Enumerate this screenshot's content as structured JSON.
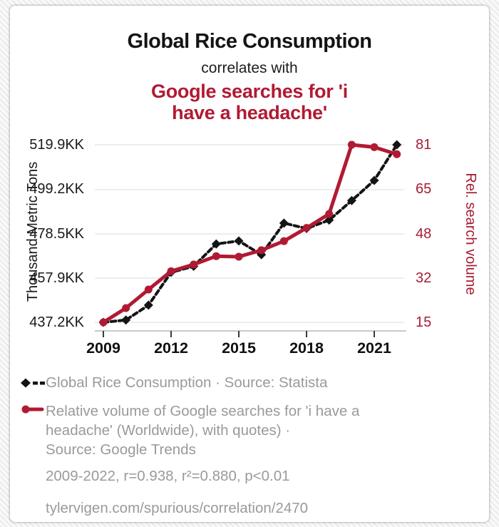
{
  "header": {
    "title": "Global Rice Consumption",
    "connector": "correlates with",
    "correlated_term_line1": "Google searches for 'i",
    "correlated_term_line2": "have a headache'"
  },
  "chart_data": {
    "type": "line",
    "x": [
      2009,
      2010,
      2011,
      2012,
      2013,
      2014,
      2015,
      2016,
      2017,
      2018,
      2019,
      2020,
      2021,
      2022
    ],
    "x_tick_labels": [
      "2009",
      "2012",
      "2015",
      "2018",
      "2021"
    ],
    "grid": true,
    "legend_position": "below",
    "left_axis": {
      "label": "Thousand Metric Tons",
      "min": 437.2,
      "max": 519.9,
      "tick_labels": [
        "519.9KK",
        "499.2KK",
        "478.5KK",
        "457.9KK",
        "437.2KK"
      ]
    },
    "right_axis": {
      "label": "Rel. search volume",
      "min": 15,
      "max": 81,
      "tick_labels": [
        "81",
        "65",
        "48",
        "32",
        "15"
      ]
    },
    "series": [
      {
        "name": "Global Rice Consumption",
        "axis": "left",
        "color": "#141414",
        "line_style": "dashed",
        "marker": "diamond",
        "values": [
          437.2,
          438.3,
          445.2,
          460.5,
          463.3,
          473.7,
          475.1,
          468.7,
          483.4,
          480.9,
          484.8,
          493.9,
          503.3,
          519.9
        ]
      },
      {
        "name": "Relative volume of Google searches for 'i have a headache'",
        "axis": "right",
        "color": "#b11a33",
        "line_style": "solid",
        "marker": "circle",
        "values": [
          15,
          20.3,
          27.2,
          34,
          36.5,
          39.6,
          39.4,
          41.8,
          45.2,
          50.1,
          55.3,
          81,
          80.1,
          77.5
        ]
      }
    ]
  },
  "legend": {
    "series1_label": "Global Rice Consumption · Source: Statista",
    "series2_lines": [
      "Relative volume of Google searches for 'i have a",
      "headache' (Worldwide), with quotes) ·",
      "Source: Google Trends"
    ]
  },
  "footer": {
    "stats": "2009-2022, r=0.938, r²=0.880, p<0.01",
    "url": "tylervigen.com/spurious/correlation/2470"
  },
  "colors": {
    "accent_red": "#b11a33",
    "axis_red": "#a81d33",
    "text_gray": "#9a9a9a",
    "grid": "#ededed",
    "card_bg": "#ffffff"
  }
}
